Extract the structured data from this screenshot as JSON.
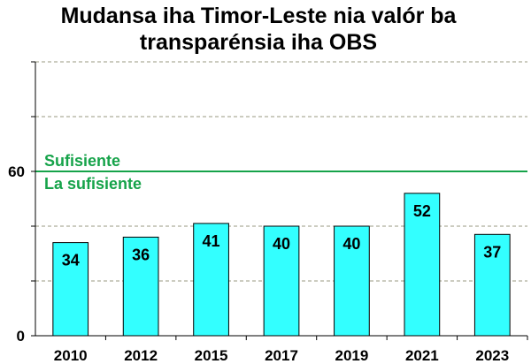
{
  "chart_data": {
    "type": "bar",
    "title_lines": [
      "Mudansa iha Timor-Leste nia valór ba",
      "transparénsia iha OBS"
    ],
    "xlabel": "",
    "ylabel": "",
    "categories": [
      "2010",
      "2012",
      "2015",
      "2017",
      "2019",
      "2021",
      "2023"
    ],
    "values": [
      34,
      36,
      41,
      40,
      40,
      52,
      37
    ],
    "ylim": [
      0,
      100
    ],
    "y_ticks": [
      0,
      20,
      40,
      60,
      80,
      100
    ],
    "y_tick_labels": [
      "0",
      "",
      "",
      "60",
      "",
      ""
    ],
    "threshold": {
      "value": 60,
      "label_above": "Sufisiente",
      "label_below": "La sufisiente",
      "color": "#16a34a"
    },
    "bar_color": "#33ffff",
    "grid": "dashed horizontal"
  }
}
